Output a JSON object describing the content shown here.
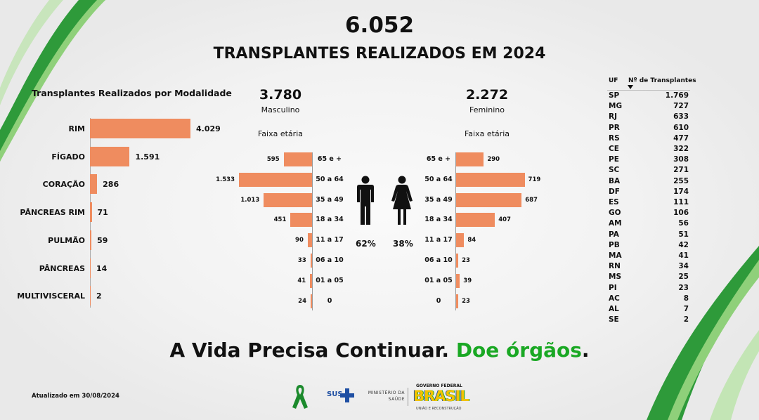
{
  "header": {
    "total": "6.052",
    "title": "TRANSPLANTES REALIZADOS EM 2024"
  },
  "modality": {
    "title": "Transplantes Realizados por Modalidade",
    "items": [
      {
        "label": "RIM",
        "value": 4029,
        "display": "4.029"
      },
      {
        "label": "FÍGADO",
        "value": 1591,
        "display": "1.591"
      },
      {
        "label": "CORAÇÃO",
        "value": 286,
        "display": "286"
      },
      {
        "label": "PÂNCREAS RIM",
        "value": 71,
        "display": "71"
      },
      {
        "label": "PULMÃO",
        "value": 59,
        "display": "59"
      },
      {
        "label": "PÂNCREAS",
        "value": 14,
        "display": "14"
      },
      {
        "label": "MULTIVISCERAL",
        "value": 2,
        "display": "2"
      }
    ]
  },
  "male": {
    "total": "3.780",
    "label": "Masculino",
    "faixa": "Faixa etária",
    "pct": "62%",
    "ages": [
      {
        "age": "65 e +",
        "value": 595,
        "display": "595"
      },
      {
        "age": "50 a 64",
        "value": 1533,
        "display": "1.533"
      },
      {
        "age": "35 a 49",
        "value": 1013,
        "display": "1.013"
      },
      {
        "age": "18 a 34",
        "value": 451,
        "display": "451"
      },
      {
        "age": "11 a 17",
        "value": 90,
        "display": "90"
      },
      {
        "age": "06 a 10",
        "value": 33,
        "display": "33"
      },
      {
        "age": "01 a 05",
        "value": 41,
        "display": "41"
      },
      {
        "age": "0",
        "value": 24,
        "display": "24"
      }
    ]
  },
  "female": {
    "total": "2.272",
    "label": "Feminino",
    "faixa": "Faixa etária",
    "pct": "38%",
    "ages": [
      {
        "age": "65 e +",
        "value": 290,
        "display": "290"
      },
      {
        "age": "50 a 64",
        "value": 719,
        "display": "719"
      },
      {
        "age": "35 a 49",
        "value": 687,
        "display": "687"
      },
      {
        "age": "18 a 34",
        "value": 407,
        "display": "407"
      },
      {
        "age": "11 a 17",
        "value": 84,
        "display": "84"
      },
      {
        "age": "06 a 10",
        "value": 23,
        "display": "23"
      },
      {
        "age": "01 a 05",
        "value": 39,
        "display": "39"
      },
      {
        "age": "0",
        "value": 23,
        "display": "23"
      }
    ]
  },
  "uf_table": {
    "col_uf": "UF",
    "col_n": "Nº de Transplantes",
    "rows": [
      {
        "uf": "SP",
        "n": "1.769"
      },
      {
        "uf": "MG",
        "n": "727"
      },
      {
        "uf": "RJ",
        "n": "633"
      },
      {
        "uf": "PR",
        "n": "610"
      },
      {
        "uf": "RS",
        "n": "477"
      },
      {
        "uf": "CE",
        "n": "322"
      },
      {
        "uf": "PE",
        "n": "308"
      },
      {
        "uf": "SC",
        "n": "271"
      },
      {
        "uf": "BA",
        "n": "255"
      },
      {
        "uf": "DF",
        "n": "174"
      },
      {
        "uf": "ES",
        "n": "111"
      },
      {
        "uf": "GO",
        "n": "106"
      },
      {
        "uf": "AM",
        "n": "56"
      },
      {
        "uf": "PA",
        "n": "51"
      },
      {
        "uf": "PB",
        "n": "42"
      },
      {
        "uf": "MA",
        "n": "41"
      },
      {
        "uf": "RN",
        "n": "34"
      },
      {
        "uf": "MS",
        "n": "25"
      },
      {
        "uf": "PI",
        "n": "23"
      },
      {
        "uf": "AC",
        "n": "8"
      },
      {
        "uf": "AL",
        "n": "7"
      },
      {
        "uf": "SE",
        "n": "2"
      }
    ]
  },
  "slogan": {
    "part1": "A Vida Precisa Continuar. ",
    "part2": "Doe órgãos",
    "part3": "."
  },
  "footer": {
    "updated": "Atualizado em 30/08/2024",
    "sus": "SUS",
    "ministerio": "MINISTÉRIO DA SAÚDE",
    "gov1": "GOVERNO FEDERAL",
    "gov2": "BRASIL",
    "gov3": "UNIÃO E RECONSTRUÇÃO"
  },
  "colors": {
    "bar": "#ef8c5f",
    "green": "#1aa824"
  },
  "chart_data": [
    {
      "type": "bar",
      "title": "Transplantes Realizados por Modalidade",
      "categories": [
        "RIM",
        "FÍGADO",
        "CORAÇÃO",
        "PÂNCREAS RIM",
        "PULMÃO",
        "PÂNCREAS",
        "MULTIVISCERAL"
      ],
      "values": [
        4029,
        1591,
        286,
        71,
        59,
        14,
        2
      ]
    },
    {
      "type": "bar",
      "title": "Masculino",
      "categories": [
        "65 e +",
        "50 a 64",
        "35 a 49",
        "18 a 34",
        "11 a 17",
        "06 a 10",
        "01 a 05",
        "0"
      ],
      "values": [
        595,
        1533,
        1013,
        451,
        90,
        33,
        41,
        24
      ]
    },
    {
      "type": "bar",
      "title": "Feminino",
      "categories": [
        "65 e +",
        "50 a 64",
        "35 a 49",
        "18 a 34",
        "11 a 17",
        "06 a 10",
        "01 a 05",
        "0"
      ],
      "values": [
        290,
        719,
        687,
        407,
        84,
        23,
        39,
        23
      ]
    },
    {
      "type": "table",
      "columns": [
        "UF",
        "Nº de Transplantes"
      ],
      "rows": [
        [
          "SP",
          1769
        ],
        [
          "MG",
          727
        ],
        [
          "RJ",
          633
        ],
        [
          "PR",
          610
        ],
        [
          "RS",
          477
        ],
        [
          "CE",
          322
        ],
        [
          "PE",
          308
        ],
        [
          "SC",
          271
        ],
        [
          "BA",
          255
        ],
        [
          "DF",
          174
        ],
        [
          "ES",
          111
        ],
        [
          "GO",
          106
        ],
        [
          "AM",
          56
        ],
        [
          "PA",
          51
        ],
        [
          "PB",
          42
        ],
        [
          "MA",
          41
        ],
        [
          "RN",
          34
        ],
        [
          "MS",
          25
        ],
        [
          "PI",
          23
        ],
        [
          "AC",
          8
        ],
        [
          "AL",
          7
        ],
        [
          "SE",
          2
        ]
      ]
    }
  ]
}
